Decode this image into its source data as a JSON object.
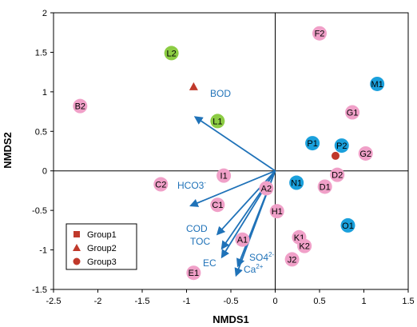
{
  "chart_data": {
    "type": "scatter",
    "title": "",
    "xlabel": "NMDS1",
    "ylabel": "NMDS2",
    "xlim": [
      -2.5,
      1.5
    ],
    "ylim": [
      -1.5,
      2
    ],
    "xticks": [
      "-2.5",
      "-2",
      "-1.5",
      "-1",
      "-0.5",
      "0",
      "0.5",
      "1",
      "1.5"
    ],
    "xtick_values": [
      -2.5,
      -2,
      -1.5,
      -1,
      -0.5,
      0,
      0.5,
      1,
      1.5
    ],
    "yticks": [
      "2",
      "1.5",
      "1",
      "0.5",
      "0",
      "-0.5",
      "-1",
      "-1.5"
    ],
    "ytick_values": [
      2,
      1.5,
      1,
      0.5,
      0,
      -0.5,
      -1,
      -1.5
    ],
    "grid": false,
    "legend_position": "bottom-left",
    "colors": {
      "pink": "#f0a0c8",
      "green": "#8ccc44",
      "blue": "#1aa0dc",
      "legend": "#c0392b",
      "vector": "#1f72b8"
    },
    "legend": [
      {
        "label": "Group1",
        "marker": "square"
      },
      {
        "label": "Group2",
        "marker": "triangle"
      },
      {
        "label": "Group3",
        "marker": "circle"
      }
    ],
    "points": [
      {
        "label": "F2",
        "x": 0.5,
        "y": 1.74,
        "color": "pink"
      },
      {
        "label": "L2",
        "x": -1.17,
        "y": 1.49,
        "color": "green"
      },
      {
        "label": "M1",
        "x": 1.15,
        "y": 1.1,
        "color": "blue"
      },
      {
        "label": "B2",
        "x": -2.2,
        "y": 0.82,
        "color": "pink"
      },
      {
        "label": "G1",
        "x": 0.87,
        "y": 0.74,
        "color": "pink"
      },
      {
        "label": "L1",
        "x": -0.65,
        "y": 0.63,
        "color": "green"
      },
      {
        "label": "P1",
        "x": 0.42,
        "y": 0.35,
        "color": "blue"
      },
      {
        "label": "P2",
        "x": 0.75,
        "y": 0.32,
        "color": "blue"
      },
      {
        "label": "G2",
        "x": 1.02,
        "y": 0.22,
        "color": "pink"
      },
      {
        "label": "I1",
        "x": -0.58,
        "y": -0.06,
        "color": "pink"
      },
      {
        "label": "D2",
        "x": 0.7,
        "y": -0.05,
        "color": "pink"
      },
      {
        "label": "C2",
        "x": -1.29,
        "y": -0.17,
        "color": "pink"
      },
      {
        "label": "N1",
        "x": 0.24,
        "y": -0.15,
        "color": "blue"
      },
      {
        "label": "D1",
        "x": 0.56,
        "y": -0.2,
        "color": "pink"
      },
      {
        "label": "A2",
        "x": -0.1,
        "y": -0.22,
        "color": "pink"
      },
      {
        "label": "C1",
        "x": -0.65,
        "y": -0.43,
        "color": "pink"
      },
      {
        "label": "H1",
        "x": 0.02,
        "y": -0.51,
        "color": "pink"
      },
      {
        "label": "O1",
        "x": 0.82,
        "y": -0.69,
        "color": "blue"
      },
      {
        "label": "A1",
        "x": -0.37,
        "y": -0.87,
        "color": "pink"
      },
      {
        "label": "K1",
        "x": 0.27,
        "y": -0.84,
        "color": "pink"
      },
      {
        "label": "K2",
        "x": 0.33,
        "y": -0.95,
        "color": "pink"
      },
      {
        "label": "J2",
        "x": 0.19,
        "y": -1.12,
        "color": "pink"
      },
      {
        "label": "E1",
        "x": -0.92,
        "y": -1.29,
        "color": "pink"
      }
    ],
    "group_markers": [
      {
        "shape": "triangle",
        "x": -0.92,
        "y": 1.06
      },
      {
        "shape": "circle",
        "x": 0.68,
        "y": 0.19
      }
    ],
    "vectors": {
      "origin": [
        0,
        0
      ],
      "items": [
        {
          "label": "BOD",
          "x": -0.9,
          "y": 0.68
        },
        {
          "label": "HCO3",
          "sup": "-",
          "x": -0.95,
          "y": -0.44
        },
        {
          "label": "COD",
          "x": -0.65,
          "y": -0.8
        },
        {
          "label": "TOC",
          "x": -0.6,
          "y": -0.98
        },
        {
          "label": "EC",
          "x": -0.6,
          "y": -1.09
        },
        {
          "label": "SO4",
          "sub": "2-",
          "x": -0.42,
          "y": -1.2
        },
        {
          "label": "Ca",
          "sup": "2+",
          "x": -0.44,
          "y": -1.32
        }
      ]
    }
  }
}
